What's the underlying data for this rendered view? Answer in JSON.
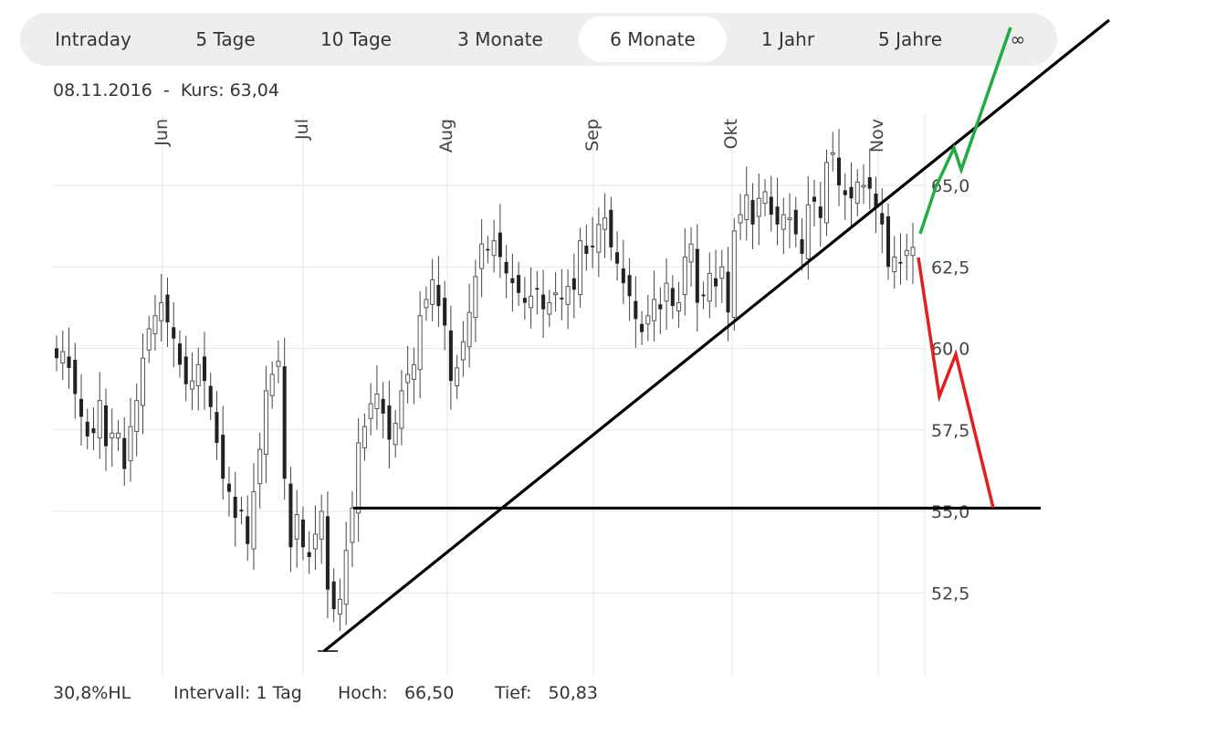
{
  "tabs": [
    {
      "label": "Intraday",
      "active": false
    },
    {
      "label": "5 Tage",
      "active": false
    },
    {
      "label": "10 Tage",
      "active": false
    },
    {
      "label": "3 Monate",
      "active": false
    },
    {
      "label": "6 Monate",
      "active": true
    },
    {
      "label": "1 Jahr",
      "active": false
    },
    {
      "label": "5 Jahre",
      "active": false
    },
    {
      "label": "∞",
      "active": false
    }
  ],
  "header": {
    "date": "08.11.2016",
    "separator": "-",
    "price_label": "Kurs:",
    "price_value": "63,04"
  },
  "footer": {
    "range_pct": "30,8%HL",
    "interval_label": "Intervall: 1 Tag",
    "high_label": "Hoch:",
    "high_value": "66,50",
    "low_label": "Tief:",
    "low_value": "50,83"
  },
  "chart_data": {
    "type": "candlestick",
    "x_ticks": [
      "Jun",
      "Jul",
      "Aug",
      "Sep",
      "Okt",
      "Nov"
    ],
    "y_ticks": [
      "65,0",
      "62,5",
      "60,0",
      "57,5",
      "55,0",
      "52,5"
    ],
    "y_tick_values": [
      65,
      62.5,
      60,
      57.5,
      55,
      52.5
    ],
    "ylim": [
      49.5,
      67.5
    ],
    "grid": true,
    "high": 66.5,
    "low": 50.83,
    "closes": [
      59.7,
      59.9,
      59.4,
      58.6,
      57.9,
      57.3,
      57.4,
      58.4,
      57.0,
      57.4,
      57.4,
      56.3,
      57.6,
      58.4,
      59.7,
      60.6,
      61.0,
      61.4,
      60.8,
      60.3,
      59.5,
      58.9,
      59.0,
      59.5,
      59.0,
      58.2,
      57.1,
      56.0,
      55.6,
      54.8,
      55.0,
      54.0,
      55.6,
      56.9,
      58.7,
      59.2,
      59.6,
      56.0,
      53.9,
      54.9,
      53.9,
      53.6,
      54.3,
      55.0,
      52.6,
      52.0,
      52.3,
      53.8,
      55.1,
      57.1,
      57.6,
      58.3,
      58.6,
      58.0,
      57.2,
      57.7,
      58.7,
      59.2,
      59.5,
      61.0,
      61.5,
      62.1,
      61.3,
      60.7,
      59.0,
      59.4,
      60.2,
      61.1,
      62.2,
      63.2,
      63.0,
      63.3,
      62.8,
      62.3,
      62.0,
      61.7,
      61.4,
      61.6,
      61.8,
      61.2,
      61.4,
      61.7,
      61.5,
      61.9,
      61.8,
      63.3,
      62.9,
      63.1,
      63.8,
      64.0,
      63.1,
      62.6,
      62.0,
      61.6,
      60.9,
      60.5,
      61.0,
      61.5,
      61.2,
      62.0,
      61.3,
      61.4,
      62.8,
      63.2,
      61.4,
      61.6,
      62.3,
      61.9,
      62.5,
      61.1,
      63.6,
      64.1,
      64.7,
      63.8,
      64.6,
      64.8,
      64.1,
      63.8,
      64.1,
      64.0,
      63.5,
      62.9,
      64.4,
      64.5,
      64.0,
      65.7,
      66.0,
      65.0,
      64.7,
      64.6,
      65.1,
      65.0,
      64.9,
      64.3,
      63.8,
      62.5,
      62.8,
      62.6,
      63.0,
      63.1
    ],
    "annotations": [
      {
        "type": "trendline",
        "color": "#000000",
        "from": [
          0,
          50.83
        ],
        "to": [
          155,
          67.0
        ]
      },
      {
        "type": "horizontal",
        "color": "#000000",
        "value": 55.1,
        "from_index": 33,
        "to_index": 120
      },
      {
        "type": "scenario",
        "color": "#22aa44",
        "points": [
          [
            0,
            63.2
          ],
          [
            5,
            65.0
          ],
          [
            10,
            66.1
          ],
          [
            13,
            65.5
          ],
          [
            20,
            67.6
          ]
        ]
      },
      {
        "type": "scenario",
        "color": "#e02020",
        "points": [
          [
            0,
            62.8
          ],
          [
            5,
            58.5
          ],
          [
            10,
            59.8
          ],
          [
            18,
            55.1
          ]
        ]
      }
    ]
  }
}
